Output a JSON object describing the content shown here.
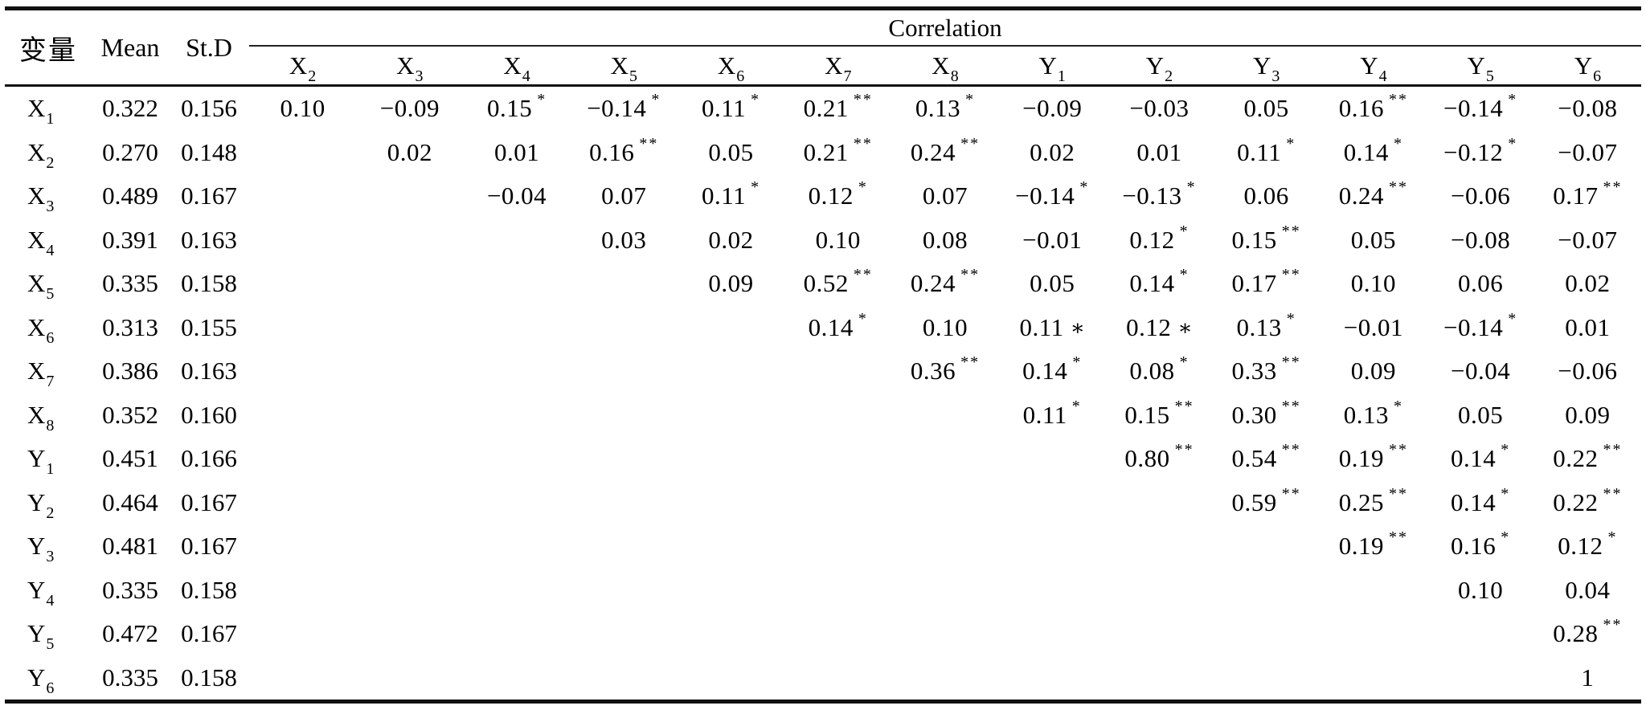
{
  "page": {
    "background": "#ffffff",
    "text_color": "#000000",
    "rule_color": "#111111"
  },
  "table": {
    "variable_header": "变量",
    "mean_header": "Mean",
    "std_header": "St.D",
    "group_header": "Correlation",
    "columns": [
      {
        "base": "X",
        "sub": "2"
      },
      {
        "base": "X",
        "sub": "3"
      },
      {
        "base": "X",
        "sub": "4"
      },
      {
        "base": "X",
        "sub": "5"
      },
      {
        "base": "X",
        "sub": "6"
      },
      {
        "base": "X",
        "sub": "7"
      },
      {
        "base": "X",
        "sub": "8"
      },
      {
        "base": "Y",
        "sub": "1"
      },
      {
        "base": "Y",
        "sub": "2"
      },
      {
        "base": "Y",
        "sub": "3"
      },
      {
        "base": "Y",
        "sub": "4"
      },
      {
        "base": "Y",
        "sub": "5"
      },
      {
        "base": "Y",
        "sub": "6"
      }
    ],
    "rows": [
      {
        "label": {
          "base": "X",
          "sub": "1"
        },
        "mean": "0.322",
        "std": "0.156",
        "cells": [
          {
            "v": "0.10"
          },
          {
            "v": "−0.09"
          },
          {
            "v": "0.15",
            "sig": "*"
          },
          {
            "v": "−0.14",
            "sig": "*"
          },
          {
            "v": "0.11",
            "sig": "*"
          },
          {
            "v": "0.21",
            "sig": "**"
          },
          {
            "v": "0.13",
            "sig": "*"
          },
          {
            "v": "−0.09"
          },
          {
            "v": "−0.03"
          },
          {
            "v": "0.05"
          },
          {
            "v": "0.16",
            "sig": "**"
          },
          {
            "v": "−0.14",
            "sig": "*"
          },
          {
            "v": "−0.08"
          }
        ]
      },
      {
        "label": {
          "base": "X",
          "sub": "2"
        },
        "mean": "0.270",
        "std": "0.148",
        "cells": [
          null,
          {
            "v": "0.02"
          },
          {
            "v": "0.01"
          },
          {
            "v": "0.16",
            "sig": "**"
          },
          {
            "v": "0.05"
          },
          {
            "v": "0.21",
            "sig": "**"
          },
          {
            "v": "0.24",
            "sig": "**"
          },
          {
            "v": "0.02"
          },
          {
            "v": "0.01"
          },
          {
            "v": "0.11",
            "sig": "*"
          },
          {
            "v": "0.14",
            "sig": "*"
          },
          {
            "v": "−0.12",
            "sig": "*"
          },
          {
            "v": "−0.07"
          }
        ]
      },
      {
        "label": {
          "base": "X",
          "sub": "3"
        },
        "mean": "0.489",
        "std": "0.167",
        "cells": [
          null,
          null,
          {
            "v": "−0.04"
          },
          {
            "v": "0.07"
          },
          {
            "v": "0.11",
            "sig": "*"
          },
          {
            "v": "0.12",
            "sig": "*"
          },
          {
            "v": "0.07"
          },
          {
            "v": "−0.14",
            "sig": "*"
          },
          {
            "v": "−0.13",
            "sig": "*"
          },
          {
            "v": "0.06"
          },
          {
            "v": "0.24",
            "sig": "**"
          },
          {
            "v": "−0.06"
          },
          {
            "v": "0.17",
            "sig": "**"
          }
        ]
      },
      {
        "label": {
          "base": "X",
          "sub": "4"
        },
        "mean": "0.391",
        "std": "0.163",
        "cells": [
          null,
          null,
          null,
          {
            "v": "0.03"
          },
          {
            "v": "0.02"
          },
          {
            "v": "0.10"
          },
          {
            "v": "0.08"
          },
          {
            "v": "−0.01"
          },
          {
            "v": "0.12",
            "sig": "*"
          },
          {
            "v": "0.15",
            "sig": "**"
          },
          {
            "v": "0.05"
          },
          {
            "v": "−0.08"
          },
          {
            "v": "−0.07"
          }
        ]
      },
      {
        "label": {
          "base": "X",
          "sub": "5"
        },
        "mean": "0.335",
        "std": "0.158",
        "cells": [
          null,
          null,
          null,
          null,
          {
            "v": "0.09"
          },
          {
            "v": "0.52",
            "sig": "**"
          },
          {
            "v": "0.24",
            "sig": "**"
          },
          {
            "v": "0.05"
          },
          {
            "v": "0.14",
            "sig": "*"
          },
          {
            "v": "0.17",
            "sig": "**"
          },
          {
            "v": "0.10"
          },
          {
            "v": "0.06"
          },
          {
            "v": "0.02"
          }
        ]
      },
      {
        "label": {
          "base": "X",
          "sub": "6"
        },
        "mean": "0.313",
        "std": "0.155",
        "cells": [
          null,
          null,
          null,
          null,
          null,
          {
            "v": "0.14",
            "sig": "*"
          },
          {
            "v": "0.10"
          },
          {
            "v": "0.11",
            "sig": "∗",
            "inline": true
          },
          {
            "v": "0.12",
            "sig": "∗",
            "inline": true
          },
          {
            "v": "0.13",
            "sig": "*"
          },
          {
            "v": "−0.01"
          },
          {
            "v": "−0.14",
            "sig": "*"
          },
          {
            "v": "0.01"
          }
        ]
      },
      {
        "label": {
          "base": "X",
          "sub": "7"
        },
        "mean": "0.386",
        "std": "0.163",
        "cells": [
          null,
          null,
          null,
          null,
          null,
          null,
          {
            "v": "0.36",
            "sig": "**"
          },
          {
            "v": "0.14",
            "sig": "*"
          },
          {
            "v": "0.08",
            "sig": "*"
          },
          {
            "v": "0.33",
            "sig": "**"
          },
          {
            "v": "0.09"
          },
          {
            "v": "−0.04"
          },
          {
            "v": "−0.06"
          }
        ]
      },
      {
        "label": {
          "base": "X",
          "sub": "8"
        },
        "mean": "0.352",
        "std": "0.160",
        "cells": [
          null,
          null,
          null,
          null,
          null,
          null,
          null,
          {
            "v": "0.11",
            "sig": "*"
          },
          {
            "v": "0.15",
            "sig": "**"
          },
          {
            "v": "0.30",
            "sig": "**"
          },
          {
            "v": "0.13",
            "sig": "*"
          },
          {
            "v": "0.05"
          },
          {
            "v": "0.09"
          }
        ]
      },
      {
        "label": {
          "base": "Y",
          "sub": "1"
        },
        "mean": "0.451",
        "std": "0.166",
        "cells": [
          null,
          null,
          null,
          null,
          null,
          null,
          null,
          null,
          {
            "v": "0.80",
            "sig": "**"
          },
          {
            "v": "0.54",
            "sig": "**"
          },
          {
            "v": "0.19",
            "sig": "**"
          },
          {
            "v": "0.14",
            "sig": "*"
          },
          {
            "v": "0.22",
            "sig": "**"
          }
        ]
      },
      {
        "label": {
          "base": "Y",
          "sub": "2"
        },
        "mean": "0.464",
        "std": "0.167",
        "cells": [
          null,
          null,
          null,
          null,
          null,
          null,
          null,
          null,
          null,
          {
            "v": "0.59",
            "sig": "**"
          },
          {
            "v": "0.25",
            "sig": "**"
          },
          {
            "v": "0.14",
            "sig": "*"
          },
          {
            "v": "0.22",
            "sig": "**"
          }
        ]
      },
      {
        "label": {
          "base": "Y",
          "sub": "3"
        },
        "mean": "0.481",
        "std": "0.167",
        "cells": [
          null,
          null,
          null,
          null,
          null,
          null,
          null,
          null,
          null,
          null,
          {
            "v": "0.19",
            "sig": "**"
          },
          {
            "v": "0.16",
            "sig": "*"
          },
          {
            "v": "0.12",
            "sig": "*"
          }
        ]
      },
      {
        "label": {
          "base": "Y",
          "sub": "4"
        },
        "mean": "0.335",
        "std": "0.158",
        "cells": [
          null,
          null,
          null,
          null,
          null,
          null,
          null,
          null,
          null,
          null,
          null,
          {
            "v": "0.10"
          },
          {
            "v": "0.04"
          }
        ]
      },
      {
        "label": {
          "base": "Y",
          "sub": "5"
        },
        "mean": "0.472",
        "std": "0.167",
        "cells": [
          null,
          null,
          null,
          null,
          null,
          null,
          null,
          null,
          null,
          null,
          null,
          null,
          {
            "v": "0.28",
            "sig": "**"
          }
        ]
      },
      {
        "label": {
          "base": "Y",
          "sub": "6"
        },
        "mean": "0.335",
        "std": "0.158",
        "cells": [
          null,
          null,
          null,
          null,
          null,
          null,
          null,
          null,
          null,
          null,
          null,
          null,
          {
            "v": "1"
          }
        ]
      }
    ]
  }
}
